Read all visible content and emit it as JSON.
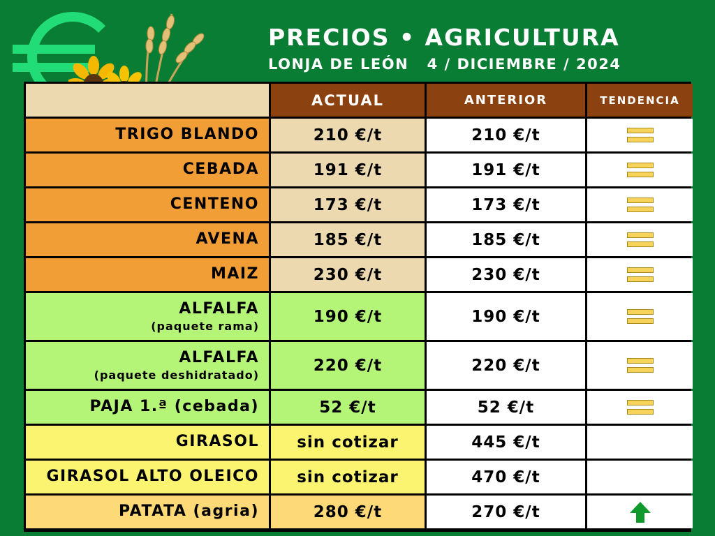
{
  "header": {
    "title": "PRECIOS • AGRICULTURA",
    "subtitle": "LONJA DE LEÓN   4 / DICIEMBRE / 2024"
  },
  "colors": {
    "background": "#0a7d35",
    "euro_symbol": "#22dd77",
    "header_brown": "#8c4210",
    "cereal_orange": "#f29e36",
    "forage_green": "#b4f578",
    "oilseed_yellow": "#fbf470",
    "tuber_peach": "#fdd978",
    "trend_up": "#109a2e"
  },
  "icons": {
    "logo": "euro-icon",
    "decoration": "sunflowers-and-wheat-icon",
    "stable": "equals-icon",
    "up": "arrow-up-icon"
  },
  "columns": {
    "actual": "ACTUAL",
    "anterior": "ANTERIOR",
    "tendencia": "TENDENCIA"
  },
  "rows": [
    {
      "name": "TRIGO BLANDO",
      "actual": "210 €/t",
      "anterior": "210 €/t",
      "trend": "equal"
    },
    {
      "name": "CEBADA",
      "actual": "191 €/t",
      "anterior": "191 €/t",
      "trend": "equal"
    },
    {
      "name": "CENTENO",
      "actual": "173 €/t",
      "anterior": "173 €/t",
      "trend": "equal"
    },
    {
      "name": "AVENA",
      "actual": "185 €/t",
      "anterior": "185 €/t",
      "trend": "equal"
    },
    {
      "name": "MAIZ",
      "actual": "230 €/t",
      "anterior": "230 €/t",
      "trend": "equal"
    },
    {
      "name": "ALFALFA",
      "sub": "(paquete rama)",
      "actual": "190 €/t",
      "anterior": "190 €/t",
      "trend": "equal"
    },
    {
      "name": "ALFALFA",
      "sub": "(paquete deshidratado)",
      "actual": "220 €/t",
      "anterior": "220 €/t",
      "trend": "equal"
    },
    {
      "name": "PAJA 1.ª (cebada)",
      "actual": "52 €/t",
      "anterior": "52 €/t",
      "trend": "equal"
    },
    {
      "name": "GIRASOL",
      "actual": "sin cotizar",
      "anterior": "445 €/t",
      "trend": "none"
    },
    {
      "name": "GIRASOL ALTO OLEICO",
      "actual": "sin cotizar",
      "anterior": "470 €/t",
      "trend": "none"
    },
    {
      "name": "PATATA (agria)",
      "actual": "280 €/t",
      "anterior": "270 €/t",
      "trend": "up"
    }
  ]
}
